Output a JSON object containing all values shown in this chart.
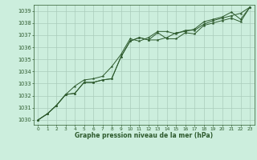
{
  "title": "Graphe pression niveau de la mer (hPa)",
  "background_color": "#cceedd",
  "grid_color": "#aaccbb",
  "line_color": "#2d5a2d",
  "xlim": [
    -0.5,
    23.5
  ],
  "ylim": [
    1029.6,
    1039.5
  ],
  "yticks": [
    1030,
    1031,
    1032,
    1033,
    1034,
    1035,
    1036,
    1037,
    1038,
    1039
  ],
  "xticks": [
    0,
    1,
    2,
    3,
    4,
    5,
    6,
    7,
    8,
    9,
    10,
    11,
    12,
    13,
    14,
    15,
    16,
    17,
    18,
    19,
    20,
    21,
    22,
    23
  ],
  "series1": [
    1030.0,
    1030.5,
    1031.2,
    1032.1,
    1032.2,
    1033.1,
    1033.1,
    1033.3,
    1033.4,
    1035.2,
    1036.5,
    1036.8,
    1036.6,
    1037.2,
    1036.7,
    1036.7,
    1037.2,
    1037.1,
    1037.8,
    1038.0,
    1038.2,
    1038.4,
    1038.1,
    1039.3
  ],
  "series2": [
    1030.0,
    1030.5,
    1031.2,
    1032.1,
    1032.8,
    1033.3,
    1033.4,
    1033.6,
    1034.4,
    1035.4,
    1036.7,
    1036.5,
    1036.8,
    1037.3,
    1037.3,
    1037.1,
    1037.4,
    1037.4,
    1037.9,
    1038.2,
    1038.4,
    1038.6,
    1038.8,
    1039.3
  ],
  "series3": [
    1030.0,
    1030.5,
    1031.2,
    1032.1,
    1032.2,
    1033.1,
    1033.1,
    1033.3,
    1033.4,
    1035.2,
    1036.5,
    1036.8,
    1036.6,
    1036.6,
    1036.8,
    1037.2,
    1037.3,
    1037.5,
    1038.1,
    1038.3,
    1038.5,
    1038.9,
    1038.3,
    1039.3
  ]
}
